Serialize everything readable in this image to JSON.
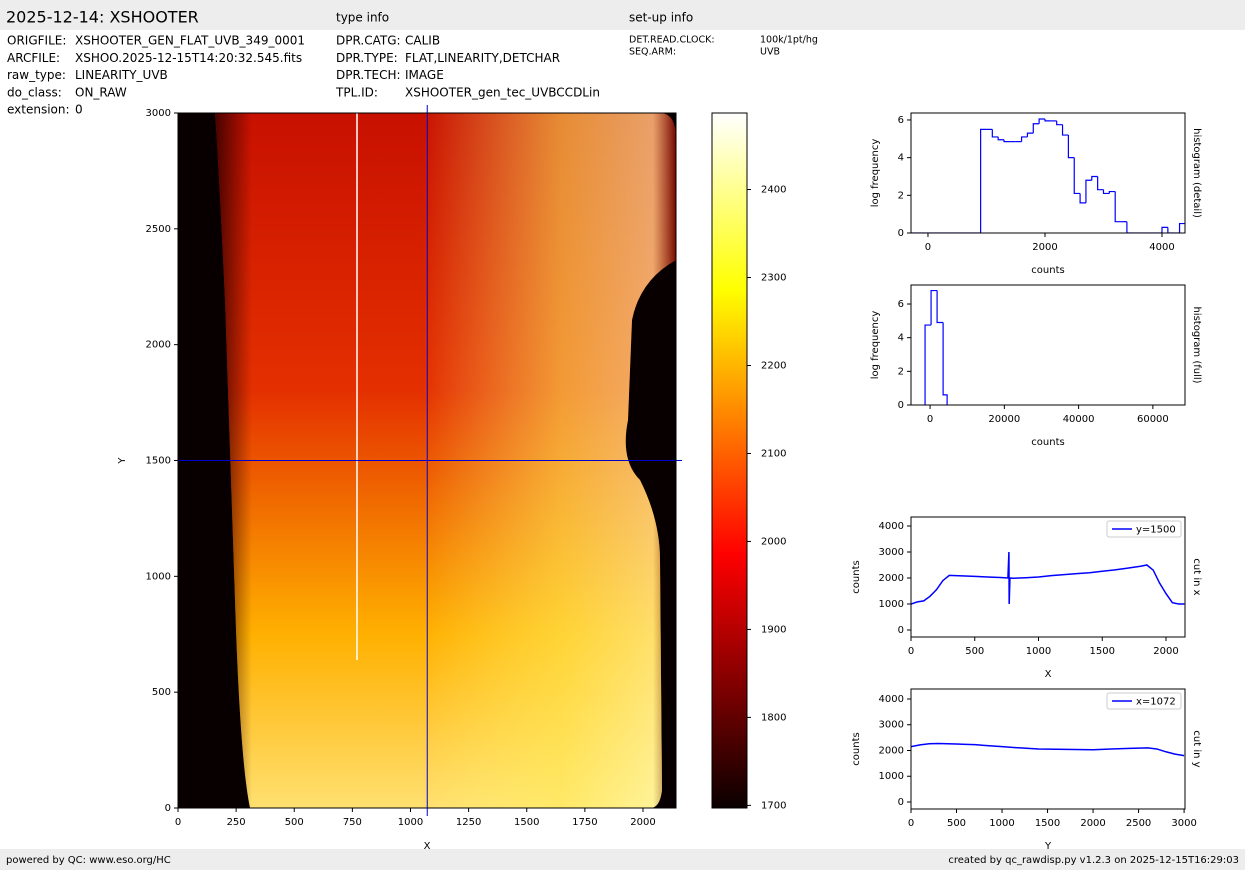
{
  "header": {
    "title": "2025-12-14: XSHOOTER",
    "type_info": "type info",
    "setup_info": "set-up info",
    "fields": [
      [
        "ORIGFILE:",
        "XSHOOTER_GEN_FLAT_UVB_349_0001"
      ],
      [
        "ARCFILE:",
        "XSHOO.2025-12-15T14:20:32.545.fits"
      ],
      [
        "raw_type:",
        "LINEARITY_UVB"
      ],
      [
        "do_class:",
        "ON_RAW"
      ],
      [
        "extension:",
        "0"
      ]
    ],
    "type_fields": [
      [
        "DPR.CATG:",
        "CALIB"
      ],
      [
        "DPR.TYPE:",
        "FLAT,LINEARITY,DETCHAR"
      ],
      [
        "DPR.TECH:",
        "IMAGE"
      ],
      [
        "TPL.ID:",
        "XSHOOTER_gen_tec_UVBCCDLin"
      ]
    ],
    "setup_fields": [
      [
        "DET.READ.CLOCK:",
        "100k/1pt/hg"
      ],
      [
        "SEQ.ARM:",
        "UVB"
      ]
    ]
  },
  "footer": {
    "left": "powered by QC: www.eso.org/HC",
    "right": "created by qc_rawdisp.py v1.2.3 on 2025-12-15T16:29:03"
  },
  "chart_data": [
    {
      "type": "image",
      "xlabel": "X",
      "ylabel": "Y",
      "xlim": [
        0,
        2142
      ],
      "ylim": [
        0,
        3000
      ],
      "xticks": [
        0,
        250,
        500,
        750,
        1000,
        1250,
        1500,
        1750,
        2000
      ],
      "yticks": [
        0,
        500,
        1000,
        1500,
        2000,
        2500,
        3000
      ],
      "crosshair": {
        "x": 1072,
        "y": 1500,
        "color": "#0000cc"
      },
      "colorbar": {
        "colormap": "hot",
        "lim": [
          1697,
          2487
        ],
        "ticks": [
          1700,
          1800,
          1900,
          2000,
          2100,
          2200,
          2300,
          2400
        ]
      }
    },
    {
      "type": "histogram",
      "xlabel": "counts",
      "ylabel": "log frequency",
      "side_label": "histogram (detail)",
      "color": "#0000ff",
      "xlim": [
        -290,
        4393
      ],
      "ylim": [
        0,
        6.37
      ],
      "xticks": [
        0,
        2000,
        4000
      ],
      "yticks": [
        0,
        2,
        4,
        6
      ],
      "bins": [
        -300,
        -200,
        -100,
        0,
        100,
        200,
        300,
        400,
        500,
        600,
        700,
        800,
        900,
        1000,
        1100,
        1200,
        1300,
        1400,
        1500,
        1600,
        1700,
        1800,
        1900,
        2000,
        2100,
        2200,
        2300,
        2400,
        2500,
        2600,
        2700,
        2800,
        2900,
        3000,
        3100,
        3200,
        3300,
        3400,
        3500,
        3600,
        3700,
        3800,
        3900,
        4000,
        4100,
        4200,
        4300,
        4400
      ],
      "values": [
        0,
        0,
        0,
        0,
        0,
        0,
        0,
        0,
        0,
        0,
        0,
        0,
        5.5,
        5.5,
        5.1,
        4.95,
        4.85,
        4.85,
        4.85,
        5.1,
        5.3,
        5.8,
        6.05,
        5.95,
        5.95,
        5.75,
        5.2,
        4.0,
        2.1,
        1.6,
        2.8,
        3.0,
        2.3,
        2.1,
        2.2,
        0.6,
        0.6,
        0,
        0,
        0,
        0,
        0,
        0,
        0.3,
        0,
        0,
        0.5
      ]
    },
    {
      "type": "histogram",
      "xlabel": "counts",
      "ylabel": "log frequency",
      "side_label": "histogram (full)",
      "color": "#0000ff",
      "xlim": [
        -5135,
        68650
      ],
      "ylim": [
        0,
        7.13
      ],
      "xticks": [
        0,
        20000,
        40000,
        60000
      ],
      "yticks": [
        0,
        2,
        4,
        6
      ],
      "bins": [
        -1350,
        270,
        1890,
        3510,
        4590
      ],
      "values": [
        4.75,
        6.8,
        4.9,
        0.6
      ]
    },
    {
      "type": "line",
      "xlabel": "X",
      "ylabel": "counts",
      "side_label": "cut in x",
      "legend": "upper right",
      "xlim": [
        0,
        2149
      ],
      "ylim": [
        -270,
        4346
      ],
      "xticks": [
        0,
        500,
        1000,
        1500,
        2000
      ],
      "yticks": [
        0,
        1000,
        2000,
        3000,
        4000
      ],
      "x": [
        0,
        50,
        100,
        150,
        200,
        250,
        300,
        400,
        500,
        600,
        700,
        760,
        768,
        770,
        776,
        800,
        900,
        1000,
        1100,
        1200,
        1300,
        1400,
        1500,
        1600,
        1700,
        1800,
        1850,
        1900,
        1950,
        2000,
        2050,
        2100,
        2144
      ],
      "series": [
        {
          "name": "y=1500",
          "color": "#0000ff",
          "values": [
            1000,
            1080,
            1120,
            1300,
            1550,
            1900,
            2100,
            2080,
            2060,
            2040,
            2020,
            2000,
            3000,
            1000,
            2000,
            1990,
            2010,
            2040,
            2090,
            2130,
            2170,
            2200,
            2260,
            2310,
            2380,
            2450,
            2500,
            2300,
            1800,
            1400,
            1050,
            1000,
            1000
          ]
        }
      ]
    },
    {
      "type": "line",
      "xlabel": "Y",
      "ylabel": "counts",
      "side_label": "cut in y",
      "legend": "upper right",
      "xlim": [
        0,
        3010
      ],
      "ylim": [
        -272,
        4388
      ],
      "xticks": [
        0,
        500,
        1000,
        1500,
        2000,
        2500,
        3000
      ],
      "yticks": [
        0,
        1000,
        2000,
        3000,
        4000
      ],
      "x": [
        0,
        100,
        200,
        300,
        400,
        500,
        600,
        700,
        800,
        1000,
        1200,
        1400,
        1600,
        1800,
        2000,
        2200,
        2400,
        2600,
        2700,
        2800,
        2900,
        3000
      ],
      "series": [
        {
          "name": "x=1072",
          "color": "#0000ff",
          "values": [
            2150,
            2220,
            2260,
            2270,
            2260,
            2250,
            2240,
            2230,
            2200,
            2150,
            2100,
            2060,
            2050,
            2040,
            2030,
            2060,
            2080,
            2100,
            2060,
            1950,
            1860,
            1800
          ]
        }
      ]
    }
  ]
}
